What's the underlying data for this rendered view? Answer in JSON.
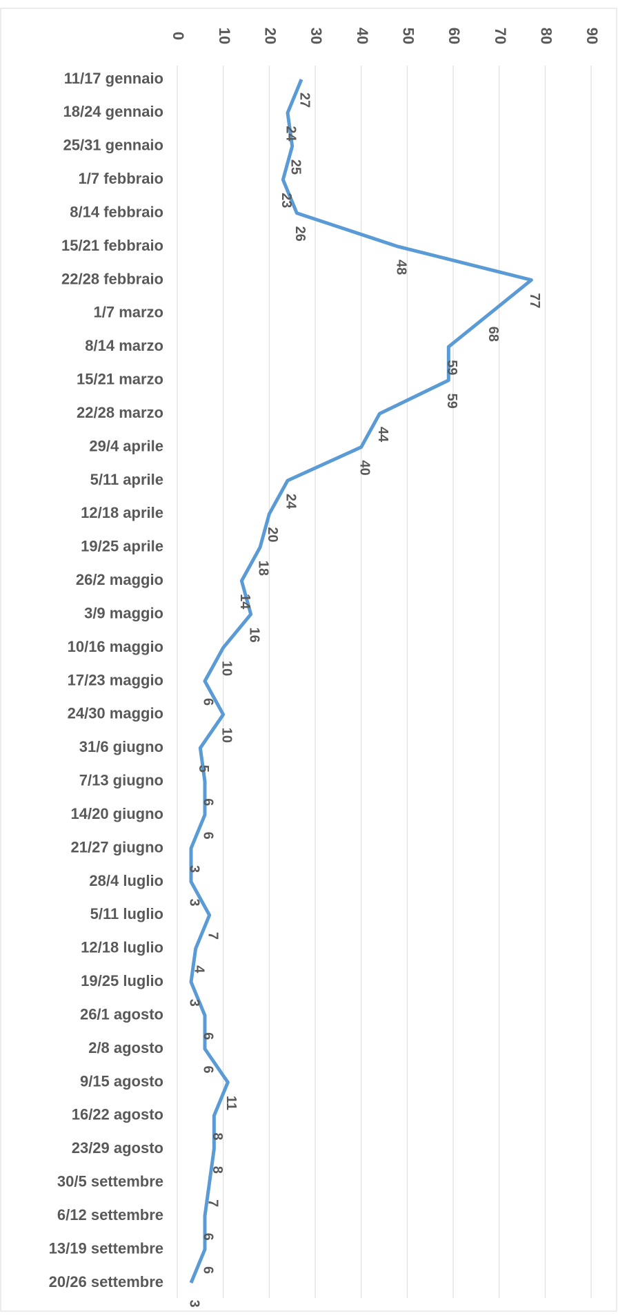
{
  "chart_data": {
    "type": "line",
    "categories": [
      "11/17 gennaio",
      "18/24 gennaio",
      "25/31 gennaio",
      "1/7 febbraio",
      "8/14 febbraio",
      "15/21 febbraio",
      "22/28 febbraio",
      "1/7 marzo",
      "8/14 marzo",
      "15/21 marzo",
      "22/28 marzo",
      "29/4 aprile",
      "5/11 aprile",
      "12/18 aprile",
      "19/25 aprile",
      "26/2 maggio",
      "3/9 maggio",
      "10/16 maggio",
      "17/23 maggio",
      "24/30 maggio",
      "31/6 giugno",
      "7/13 giugno",
      "14/20 giugno",
      "21/27 giugno",
      "28/4 luglio",
      "5/11 luglio",
      "12/18 luglio",
      "19/25 luglio",
      "26/1 agosto",
      "2/8 agosto",
      "9/15 agosto",
      "16/22 agosto",
      "23/29 agosto",
      "30/5 settembre",
      "6/12 settembre",
      "13/19 settembre",
      "20/26 settembre"
    ],
    "series": [
      {
        "color": "#5b9bd5",
        "values": [
          27,
          24,
          25,
          23,
          26,
          48,
          77,
          68,
          59,
          59,
          44,
          40,
          24,
          20,
          18,
          14,
          16,
          10,
          6,
          10,
          5,
          6,
          6,
          3,
          3,
          7,
          4,
          3,
          6,
          6,
          11,
          8,
          8,
          7,
          6,
          6,
          3
        ]
      }
    ],
    "ylim": [
      0,
      90
    ],
    "yticks": [
      0,
      10,
      20,
      30,
      40,
      50,
      60,
      70,
      80,
      90
    ],
    "grid": true
  }
}
